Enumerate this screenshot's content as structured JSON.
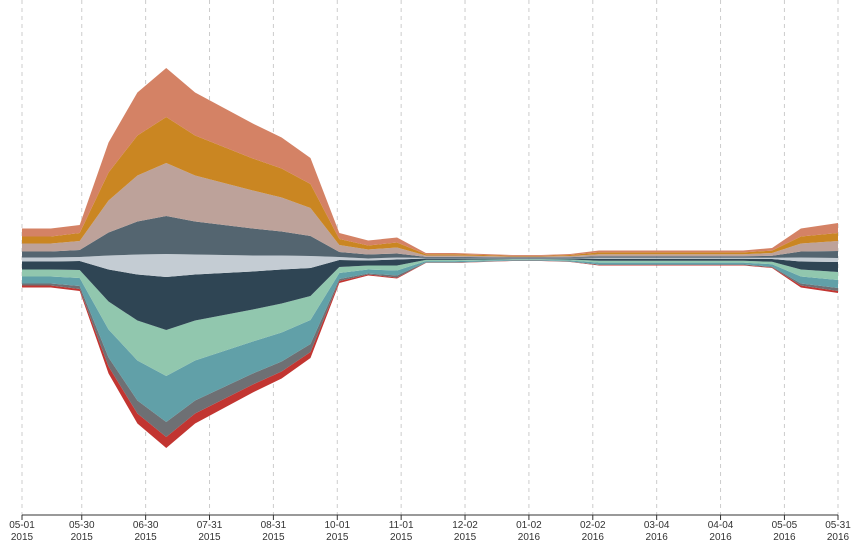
{
  "chart_data": {
    "type": "streamgraph",
    "x": [
      "2015-05-01",
      "2015-05-15",
      "2015-05-29",
      "2015-06-12",
      "2015-06-26",
      "2015-07-10",
      "2015-07-24",
      "2015-08-07",
      "2015-08-21",
      "2015-09-04",
      "2015-09-18",
      "2015-10-02",
      "2015-10-16",
      "2015-10-30",
      "2015-11-13",
      "2015-11-27",
      "2015-12-11",
      "2015-12-25",
      "2016-01-08",
      "2016-01-22",
      "2016-02-05",
      "2016-02-19",
      "2016-03-04",
      "2016-03-18",
      "2016-04-01",
      "2016-04-15",
      "2016-04-29",
      "2016-05-13",
      "2016-05-31"
    ],
    "series": [
      {
        "color": "#c23531",
        "values": [
          2,
          2,
          2,
          7,
          10,
          11,
          10,
          9,
          8,
          7,
          6,
          2,
          1,
          1,
          0.3,
          0.3,
          0.2,
          0.2,
          0.2,
          0.2,
          0.5,
          0.5,
          0.5,
          0.5,
          0.5,
          0.5,
          0.6,
          2,
          2
        ]
      },
      {
        "color": "#6e7074",
        "values": [
          2,
          2,
          3,
          9,
          13,
          15,
          13,
          12,
          11,
          10,
          8,
          2,
          1,
          2,
          0.4,
          0.4,
          0.3,
          0.2,
          0.2,
          0.3,
          0.6,
          0.6,
          0.6,
          0.6,
          0.6,
          0.6,
          0.8,
          2,
          3
        ]
      },
      {
        "color": "#61a0a8",
        "values": [
          7,
          7,
          8,
          28,
          40,
          46,
          40,
          36,
          32,
          29,
          24,
          6,
          4,
          5,
          1.2,
          1.2,
          1,
          0.7,
          0.7,
          1,
          1.8,
          1.8,
          1.8,
          1.8,
          1.8,
          1.8,
          2.4,
          7,
          8
        ]
      },
      {
        "color": "#91c7ae",
        "values": [
          7,
          7,
          8,
          28,
          40,
          46,
          40,
          36,
          32,
          29,
          24,
          6,
          4,
          5,
          1.2,
          1.2,
          1,
          0.7,
          0.7,
          1,
          1.8,
          1.8,
          1.8,
          1.8,
          1.8,
          1.8,
          2.4,
          7,
          8
        ]
      },
      {
        "color": "#2f4554",
        "values": [
          8,
          8,
          9,
          32,
          46,
          53,
          46,
          42,
          38,
          34,
          28,
          7,
          5,
          6,
          1.4,
          1.4,
          1.1,
          0.8,
          0.8,
          1.1,
          2.1,
          2.1,
          2.1,
          2.1,
          2.1,
          2.1,
          2.8,
          8,
          10
        ]
      },
      {
        "color": "#c4ccd3",
        "values": [
          4,
          4,
          4,
          14,
          20,
          23,
          20,
          18,
          16,
          14,
          12,
          3,
          2,
          2,
          0.6,
          0.6,
          0.5,
          0.4,
          0.4,
          0.5,
          0.9,
          0.9,
          0.9,
          0.9,
          0.9,
          0.9,
          1.2,
          4,
          4
        ]
      },
      {
        "color": "#546570",
        "values": [
          6,
          6,
          7,
          23,
          33,
          38,
          33,
          30,
          27,
          24,
          20,
          5,
          4,
          4,
          1,
          1,
          0.8,
          0.6,
          0.6,
          0.8,
          1.5,
          1.5,
          1.5,
          1.5,
          1.5,
          1.5,
          2,
          6,
          7
        ]
      },
      {
        "color": "#bda29a",
        "values": [
          8,
          8,
          9,
          32,
          46,
          53,
          46,
          42,
          38,
          34,
          28,
          7,
          5,
          6,
          1.4,
          1.4,
          1.1,
          0.8,
          0.8,
          1.1,
          2.1,
          2.1,
          2.1,
          2.1,
          2.1,
          2.1,
          2.8,
          8,
          10
        ]
      },
      {
        "color": "#ca8622",
        "values": [
          7,
          7,
          8,
          28,
          40,
          46,
          40,
          36,
          32,
          29,
          24,
          6,
          4,
          5,
          1.2,
          1.2,
          1,
          0.7,
          0.7,
          1,
          1.8,
          1.8,
          1.8,
          1.8,
          1.8,
          1.8,
          2.4,
          7,
          8
        ]
      },
      {
        "color": "#d48265",
        "values": [
          8,
          8,
          8,
          30,
          43,
          49,
          43,
          39,
          35,
          31,
          26,
          6,
          5,
          5,
          1.3,
          1.3,
          1,
          0.8,
          0.8,
          1,
          1.9,
          1.9,
          1.9,
          1.9,
          1.9,
          1.9,
          2.6,
          8,
          10
        ]
      }
    ],
    "xlim": [
      "2015-05-01",
      "2016-05-31"
    ],
    "ylim": [
      -250,
      250
    ],
    "xticks": [
      {
        "value": "2015-05-01",
        "label": [
          "05-01",
          "2015"
        ]
      },
      {
        "value": "2015-05-30",
        "label": [
          "05-30",
          "2015"
        ]
      },
      {
        "value": "2015-06-30",
        "label": [
          "06-30",
          "2015"
        ]
      },
      {
        "value": "2015-07-31",
        "label": [
          "07-31",
          "2015"
        ]
      },
      {
        "value": "2015-08-31",
        "label": [
          "08-31",
          "2015"
        ]
      },
      {
        "value": "2015-10-01",
        "label": [
          "10-01",
          "2015"
        ]
      },
      {
        "value": "2015-11-01",
        "label": [
          "11-01",
          "2015"
        ]
      },
      {
        "value": "2015-12-02",
        "label": [
          "12-02",
          "2015"
        ]
      },
      {
        "value": "2016-01-02",
        "label": [
          "01-02",
          "2016"
        ]
      },
      {
        "value": "2016-02-02",
        "label": [
          "02-02",
          "2016"
        ]
      },
      {
        "value": "2016-03-04",
        "label": [
          "03-04",
          "2016"
        ]
      },
      {
        "value": "2016-04-04",
        "label": [
          "04-04",
          "2016"
        ]
      },
      {
        "value": "2016-05-05",
        "label": [
          "05-05",
          "2016"
        ]
      },
      {
        "value": "2016-05-31",
        "label": [
          "05-31",
          "2016"
        ]
      }
    ],
    "grid": true
  }
}
